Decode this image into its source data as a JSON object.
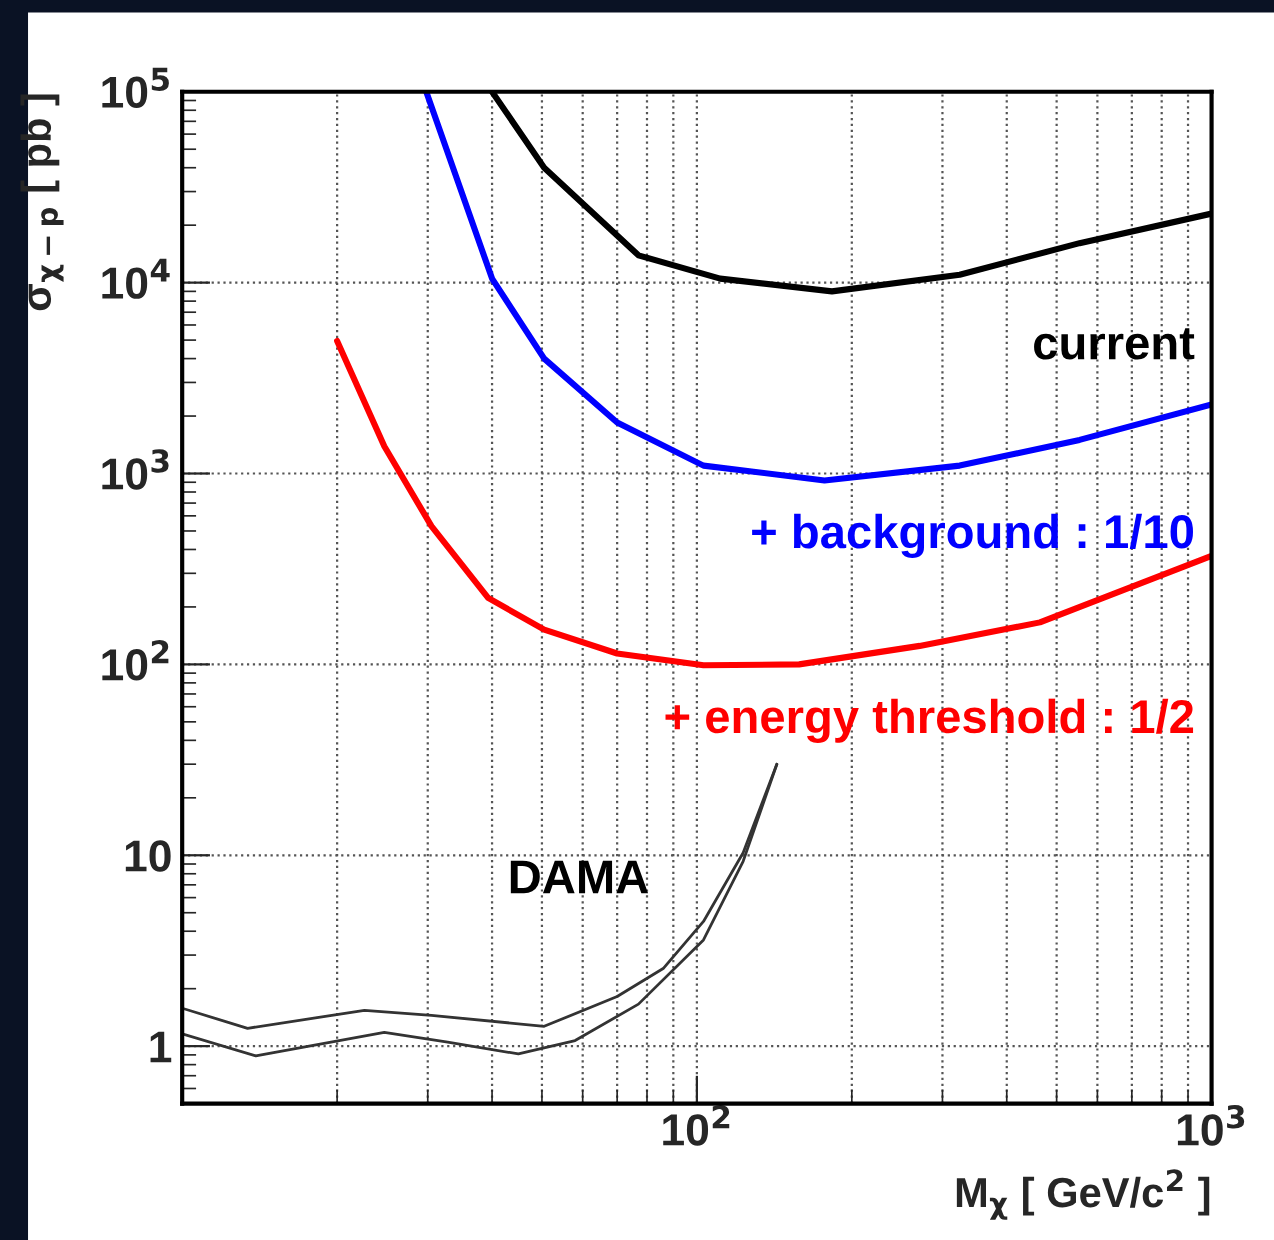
{
  "chart_data": {
    "type": "line",
    "xlabel": "M$_{χ}$ [ GeV/c$^{2}$ ]",
    "ylabel": "σ$_{χ−p}$ [ pb ]",
    "log": "xy",
    "xlim": [
      10,
      1000
    ],
    "ylim": [
      0.5,
      100000
    ],
    "xticks": [
      {
        "value": 100,
        "label": "10$^{2}$"
      },
      {
        "value": 1000,
        "label": "10$^{3}$"
      }
    ],
    "yticks": [
      1,
      10,
      {
        "value": 100,
        "label": "10$^{2}$"
      },
      {
        "value": 1000,
        "label": "10$^{3}$"
      },
      {
        "value": 10000,
        "label": "10$^{4}$"
      },
      {
        "value": 100000,
        "label": "10$^{5}$"
      }
    ],
    "grid": true,
    "legend": false,
    "marker": "none",
    "line_style": "solid",
    "series": [
      {
        "name": "current",
        "color": "#000000",
        "x": [
          40,
          50.5,
          77,
          111,
          183,
          324,
          554,
          1000
        ],
        "values": [
          100000,
          40000,
          13900,
          10500,
          9000,
          11000,
          16100,
          23000
        ]
      },
      {
        "name": "+ background : 1/10",
        "color": "#0000ff",
        "x": [
          29.8,
          40,
          50.5,
          70,
          103,
          177,
          324,
          554,
          1000
        ],
        "values": [
          100000,
          10500,
          4000,
          1850,
          1100,
          920,
          1100,
          1500,
          2300
        ]
      },
      {
        "name": "+ energy threshold : 1/2",
        "color": "#ff0000",
        "x": [
          20,
          24.7,
          30.5,
          39.3,
          50.5,
          70,
          103,
          158,
          271,
          464,
          1000
        ],
        "values": [
          4950,
          1390,
          530,
          223,
          152,
          114,
          99,
          100,
          125,
          166,
          370
        ]
      },
      {
        "color": "#333333",
        "x": [
          10,
          13.4,
          22.6,
          30.5,
          50.5,
          70,
          86,
          103,
          123,
          143
        ],
        "values": [
          1.58,
          1.24,
          1.54,
          1.45,
          1.27,
          1.82,
          2.55,
          4.5,
          10.3,
          30
        ]
      },
      {
        "color": "#333333",
        "x": [
          10,
          13.9,
          24.7,
          32.8,
          45,
          58,
          77,
          103,
          123,
          143
        ],
        "values": [
          1.16,
          0.89,
          1.18,
          1.05,
          0.91,
          1.07,
          1.66,
          3.6,
          9.3,
          30
        ]
      }
    ],
    "annotations": [
      "DAMA"
    ]
  }
}
